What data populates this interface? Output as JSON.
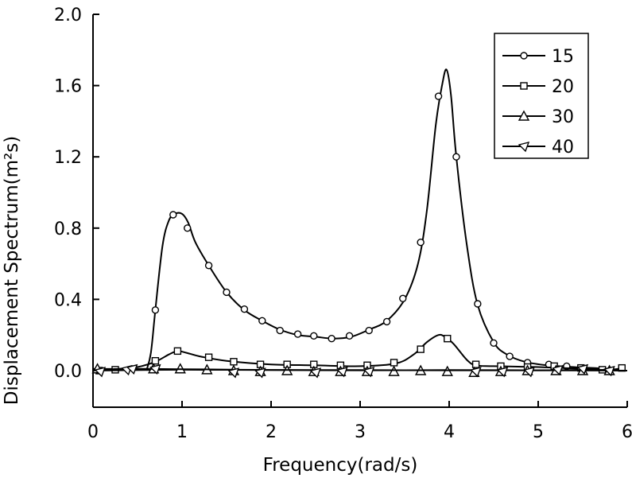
{
  "chart_data": {
    "type": "line",
    "title": "",
    "xlabel": "Frequency(rad/s)",
    "ylabel": "Displacement Spectrum(m²s)",
    "xlim": [
      0,
      6
    ],
    "ylim": [
      0,
      2.0
    ],
    "x_ticks": [
      0,
      1,
      2,
      3,
      4,
      5,
      6
    ],
    "x_tick_labels": [
      "0",
      "1",
      "2",
      "3",
      "4",
      "5",
      "6"
    ],
    "y_ticks": [
      0.0,
      0.4,
      0.8,
      1.2,
      1.6,
      2.0
    ],
    "y_tick_labels": [
      "0.0",
      "0.4",
      "0.8",
      "1.2",
      "1.6",
      "2.0"
    ],
    "grid": false,
    "legend_position": "top-right",
    "series": [
      {
        "name": "15",
        "marker": "circle",
        "curve": [
          [
            0.6,
            0.0
          ],
          [
            0.65,
            0.1
          ],
          [
            0.7,
            0.34
          ],
          [
            0.78,
            0.7
          ],
          [
            0.85,
            0.84
          ],
          [
            0.92,
            0.88
          ],
          [
            1.0,
            0.88
          ],
          [
            1.07,
            0.83
          ],
          [
            1.15,
            0.72
          ],
          [
            1.3,
            0.59
          ],
          [
            1.5,
            0.44
          ],
          [
            1.7,
            0.34
          ],
          [
            1.9,
            0.28
          ],
          [
            2.1,
            0.23
          ],
          [
            2.3,
            0.2
          ],
          [
            2.5,
            0.19
          ],
          [
            2.7,
            0.18
          ],
          [
            2.9,
            0.19
          ],
          [
            3.1,
            0.23
          ],
          [
            3.3,
            0.28
          ],
          [
            3.5,
            0.4
          ],
          [
            3.65,
            0.6
          ],
          [
            3.75,
            0.9
          ],
          [
            3.85,
            1.38
          ],
          [
            3.92,
            1.6
          ],
          [
            3.97,
            1.69
          ],
          [
            4.02,
            1.55
          ],
          [
            4.08,
            1.2
          ],
          [
            4.2,
            0.7
          ],
          [
            4.32,
            0.37
          ],
          [
            4.5,
            0.16
          ],
          [
            4.65,
            0.09
          ],
          [
            4.85,
            0.05
          ],
          [
            5.1,
            0.03
          ],
          [
            5.4,
            0.02
          ],
          [
            5.8,
            0.01
          ],
          [
            5.95,
            0.0
          ]
        ],
        "points": [
          [
            0.7,
            0.34
          ],
          [
            0.9,
            0.875
          ],
          [
            1.06,
            0.8
          ],
          [
            1.3,
            0.59
          ],
          [
            1.5,
            0.44
          ],
          [
            1.7,
            0.345
          ],
          [
            1.9,
            0.28
          ],
          [
            2.1,
            0.225
          ],
          [
            2.3,
            0.205
          ],
          [
            2.48,
            0.195
          ],
          [
            2.68,
            0.18
          ],
          [
            2.88,
            0.195
          ],
          [
            3.1,
            0.225
          ],
          [
            3.3,
            0.275
          ],
          [
            3.48,
            0.405
          ],
          [
            3.68,
            0.72
          ],
          [
            3.88,
            1.54
          ],
          [
            4.08,
            1.2
          ],
          [
            4.32,
            0.375
          ],
          [
            4.5,
            0.155
          ],
          [
            4.68,
            0.08
          ],
          [
            4.88,
            0.045
          ],
          [
            5.12,
            0.035
          ],
          [
            5.32,
            0.025
          ]
        ]
      },
      {
        "name": "20",
        "marker": "square",
        "curve": [
          [
            0.0,
            0.01
          ],
          [
            0.3,
            0.01
          ],
          [
            0.5,
            0.02
          ],
          [
            0.7,
            0.05
          ],
          [
            0.85,
            0.09
          ],
          [
            0.95,
            0.11
          ],
          [
            1.05,
            0.1
          ],
          [
            1.2,
            0.08
          ],
          [
            1.5,
            0.055
          ],
          [
            2.0,
            0.035
          ],
          [
            2.5,
            0.03
          ],
          [
            3.0,
            0.025
          ],
          [
            3.4,
            0.04
          ],
          [
            3.6,
            0.09
          ],
          [
            3.75,
            0.16
          ],
          [
            3.88,
            0.2
          ],
          [
            3.95,
            0.19
          ],
          [
            4.05,
            0.15
          ],
          [
            4.2,
            0.06
          ],
          [
            4.3,
            0.03
          ],
          [
            4.5,
            0.025
          ],
          [
            5.0,
            0.02
          ],
          [
            5.5,
            0.01
          ],
          [
            5.8,
            0.005
          ],
          [
            5.95,
            0.015
          ]
        ],
        "points": [
          [
            0.07,
            0.0
          ],
          [
            0.25,
            0.005
          ],
          [
            0.7,
            0.055
          ],
          [
            0.95,
            0.11
          ],
          [
            1.3,
            0.075
          ],
          [
            1.58,
            0.05
          ],
          [
            1.88,
            0.035
          ],
          [
            2.18,
            0.035
          ],
          [
            2.48,
            0.035
          ],
          [
            2.78,
            0.03
          ],
          [
            3.08,
            0.03
          ],
          [
            3.38,
            0.045
          ],
          [
            3.68,
            0.12
          ],
          [
            3.98,
            0.18
          ],
          [
            4.3,
            0.035
          ],
          [
            4.58,
            0.025
          ],
          [
            4.88,
            0.02
          ],
          [
            5.18,
            0.025
          ],
          [
            5.48,
            0.015
          ],
          [
            5.72,
            0.005
          ],
          [
            5.94,
            0.015
          ]
        ]
      },
      {
        "name": "30",
        "marker": "triangle",
        "curve": [
          [
            0.0,
            0.0
          ],
          [
            1.0,
            0.005
          ],
          [
            2.0,
            0.003
          ],
          [
            3.0,
            0.002
          ],
          [
            4.0,
            0.003
          ],
          [
            5.0,
            0.002
          ],
          [
            6.0,
            0.0
          ]
        ],
        "points": [
          [
            0.05,
            0.01
          ],
          [
            0.68,
            0.01
          ],
          [
            0.98,
            0.01
          ],
          [
            1.28,
            0.005
          ],
          [
            1.58,
            0.0
          ],
          [
            1.88,
            -0.005
          ],
          [
            2.18,
            0.0
          ],
          [
            2.48,
            -0.005
          ],
          [
            2.78,
            -0.005
          ],
          [
            3.08,
            -0.005
          ],
          [
            3.38,
            -0.005
          ],
          [
            3.68,
            0.0
          ],
          [
            3.98,
            -0.005
          ],
          [
            4.28,
            -0.01
          ],
          [
            4.58,
            -0.005
          ],
          [
            4.88,
            0.0
          ],
          [
            5.2,
            0.0
          ],
          [
            5.5,
            0.0
          ],
          [
            5.8,
            0.0
          ]
        ]
      },
      {
        "name": "40",
        "marker": "diamond-triangle",
        "curve": [
          [
            0.0,
            0.0
          ],
          [
            0.3,
            0.01
          ],
          [
            0.6,
            0.01
          ],
          [
            1.0,
            0.008
          ],
          [
            2.0,
            0.004
          ],
          [
            3.0,
            0.003
          ],
          [
            4.0,
            0.002
          ],
          [
            5.0,
            0.002
          ],
          [
            5.9,
            0.005
          ]
        ],
        "points": [
          [
            0.08,
            -0.005
          ],
          [
            0.38,
            0.005
          ],
          [
            0.44,
            0.01
          ],
          [
            0.7,
            0.01
          ],
          [
            1.58,
            -0.01
          ],
          [
            1.88,
            -0.01
          ],
          [
            2.5,
            -0.01
          ],
          [
            2.8,
            -0.005
          ],
          [
            3.1,
            -0.005
          ],
          [
            4.3,
            -0.005
          ],
          [
            4.6,
            -0.005
          ],
          [
            4.9,
            -0.005
          ],
          [
            5.22,
            0.005
          ],
          [
            5.5,
            0.01
          ],
          [
            5.8,
            0.0
          ]
        ]
      }
    ]
  }
}
